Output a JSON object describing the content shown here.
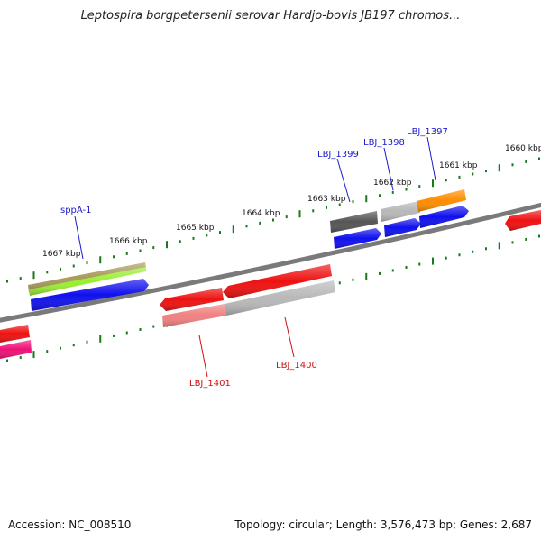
{
  "title": "Leptospira borgpetersenii serovar Hardjo-bovis JB197 chromos...",
  "footer": {
    "accession": "Accession: NC_008510",
    "topology": "Topology: circular; Length: 3,576,473 bp; Genes: 2,687"
  },
  "colors": {
    "backbone": "#7a7a7a",
    "tick": "#1a7a1a",
    "label_forward": "#1a1acc",
    "label_reverse": "#cc1111"
  },
  "ticks": [
    {
      "label": "1667 kbp",
      "kbp": 1667
    },
    {
      "label": "1666 kbp",
      "kbp": 1666
    },
    {
      "label": "1665 kbp",
      "kbp": 1665
    },
    {
      "label": "1664 kbp",
      "kbp": 1664
    },
    {
      "label": "1663 kbp",
      "kbp": 1663
    },
    {
      "label": "1662 kbp",
      "kbp": 1662
    },
    {
      "label": "1661 kbp",
      "kbp": 1661
    },
    {
      "label": "1660 kbp",
      "kbp": 1660
    }
  ],
  "gene_labels": [
    {
      "name": "sppA-1",
      "strand": "forward"
    },
    {
      "name": "LBJ_1399",
      "strand": "forward"
    },
    {
      "name": "LBJ_1398",
      "strand": "forward"
    },
    {
      "name": "LBJ_1397",
      "strand": "forward"
    },
    {
      "name": "LBJ_1401",
      "strand": "reverse"
    },
    {
      "name": "LBJ_1400",
      "strand": "reverse"
    }
  ],
  "features": [
    {
      "name": "sppA-1 gene",
      "color": "#a89c5a"
    },
    {
      "name": "sppA-1 CDS",
      "color": "#99ee33"
    },
    {
      "name": "sppA-1 protein",
      "color": "#1010ee"
    },
    {
      "name": "LBJ_1399 gene",
      "color": "#555555"
    },
    {
      "name": "LBJ_1399 CDS",
      "color": "#1010ee"
    },
    {
      "name": "LBJ_1398 gene",
      "color": "#b8b8b8"
    },
    {
      "name": "LBJ_1398 CDS",
      "color": "#1010ee"
    },
    {
      "name": "LBJ_1397 gene",
      "color": "#ff8c00"
    },
    {
      "name": "LBJ_1397 CDS",
      "color": "#1010ee"
    },
    {
      "name": "LBJ_1401 gene",
      "color": "#ee1111"
    },
    {
      "name": "LBJ_1401 CDS",
      "color": "#f08080"
    },
    {
      "name": "LBJ_1400 gene",
      "color": "#ee1111"
    },
    {
      "name": "LBJ_1400 CDS",
      "color": "#b8b8b8"
    },
    {
      "name": "partial gene right",
      "color": "#ee1111"
    },
    {
      "name": "partial gene left",
      "color": "#ee1111"
    },
    {
      "name": "partial CDS left",
      "color": "#ee1177"
    }
  ]
}
